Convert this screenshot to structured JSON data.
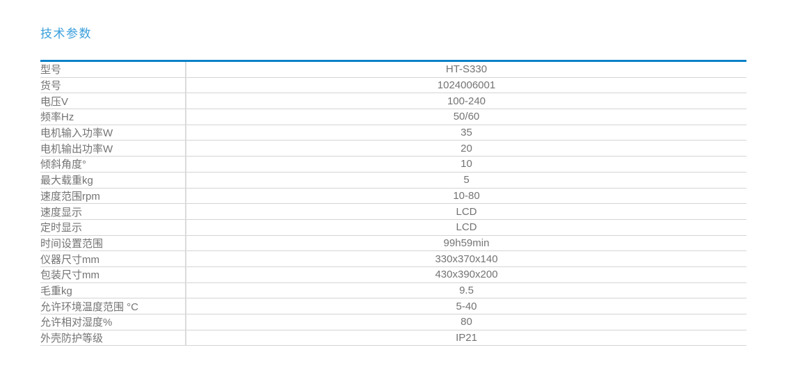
{
  "page": {
    "section_title": "技术参数"
  },
  "colors": {
    "title_blue": "#3a9fdc",
    "table_top_border_blue": "#0a82c8",
    "row_divider_gray": "#d4d4d4",
    "column_divider_gray": "#dadada",
    "text_gray": "#737373",
    "background": "#ffffff"
  },
  "table": {
    "rows": [
      {
        "label": "型号",
        "value": "HT-S330"
      },
      {
        "label": "货号",
        "value": "1024006001"
      },
      {
        "label": "电压V",
        "value": "100-240"
      },
      {
        "label": "频率Hz",
        "value": "50/60"
      },
      {
        "label": "电机输入功率W",
        "value": "35"
      },
      {
        "label": "电机输出功率W",
        "value": "20"
      },
      {
        "label": "倾斜角度°",
        "value": "10"
      },
      {
        "label": "最大载重kg",
        "value": "5"
      },
      {
        "label": "速度范围rpm",
        "value": "10-80"
      },
      {
        "label": "速度显示",
        "value": "LCD"
      },
      {
        "label": "定时显示",
        "value": "LCD"
      },
      {
        "label": "时间设置范围",
        "value": "99h59min"
      },
      {
        "label": "仪器尺寸mm",
        "value": "330x370x140"
      },
      {
        "label": "包装尺寸mm",
        "value": "430x390x200"
      },
      {
        "label": "毛重kg",
        "value": "9.5"
      },
      {
        "label": "允许环境温度范围 °C",
        "value": "5-40"
      },
      {
        "label": "允许相对湿度%",
        "value": "80"
      },
      {
        "label": "外壳防护等级",
        "value": "IP21"
      }
    ]
  }
}
